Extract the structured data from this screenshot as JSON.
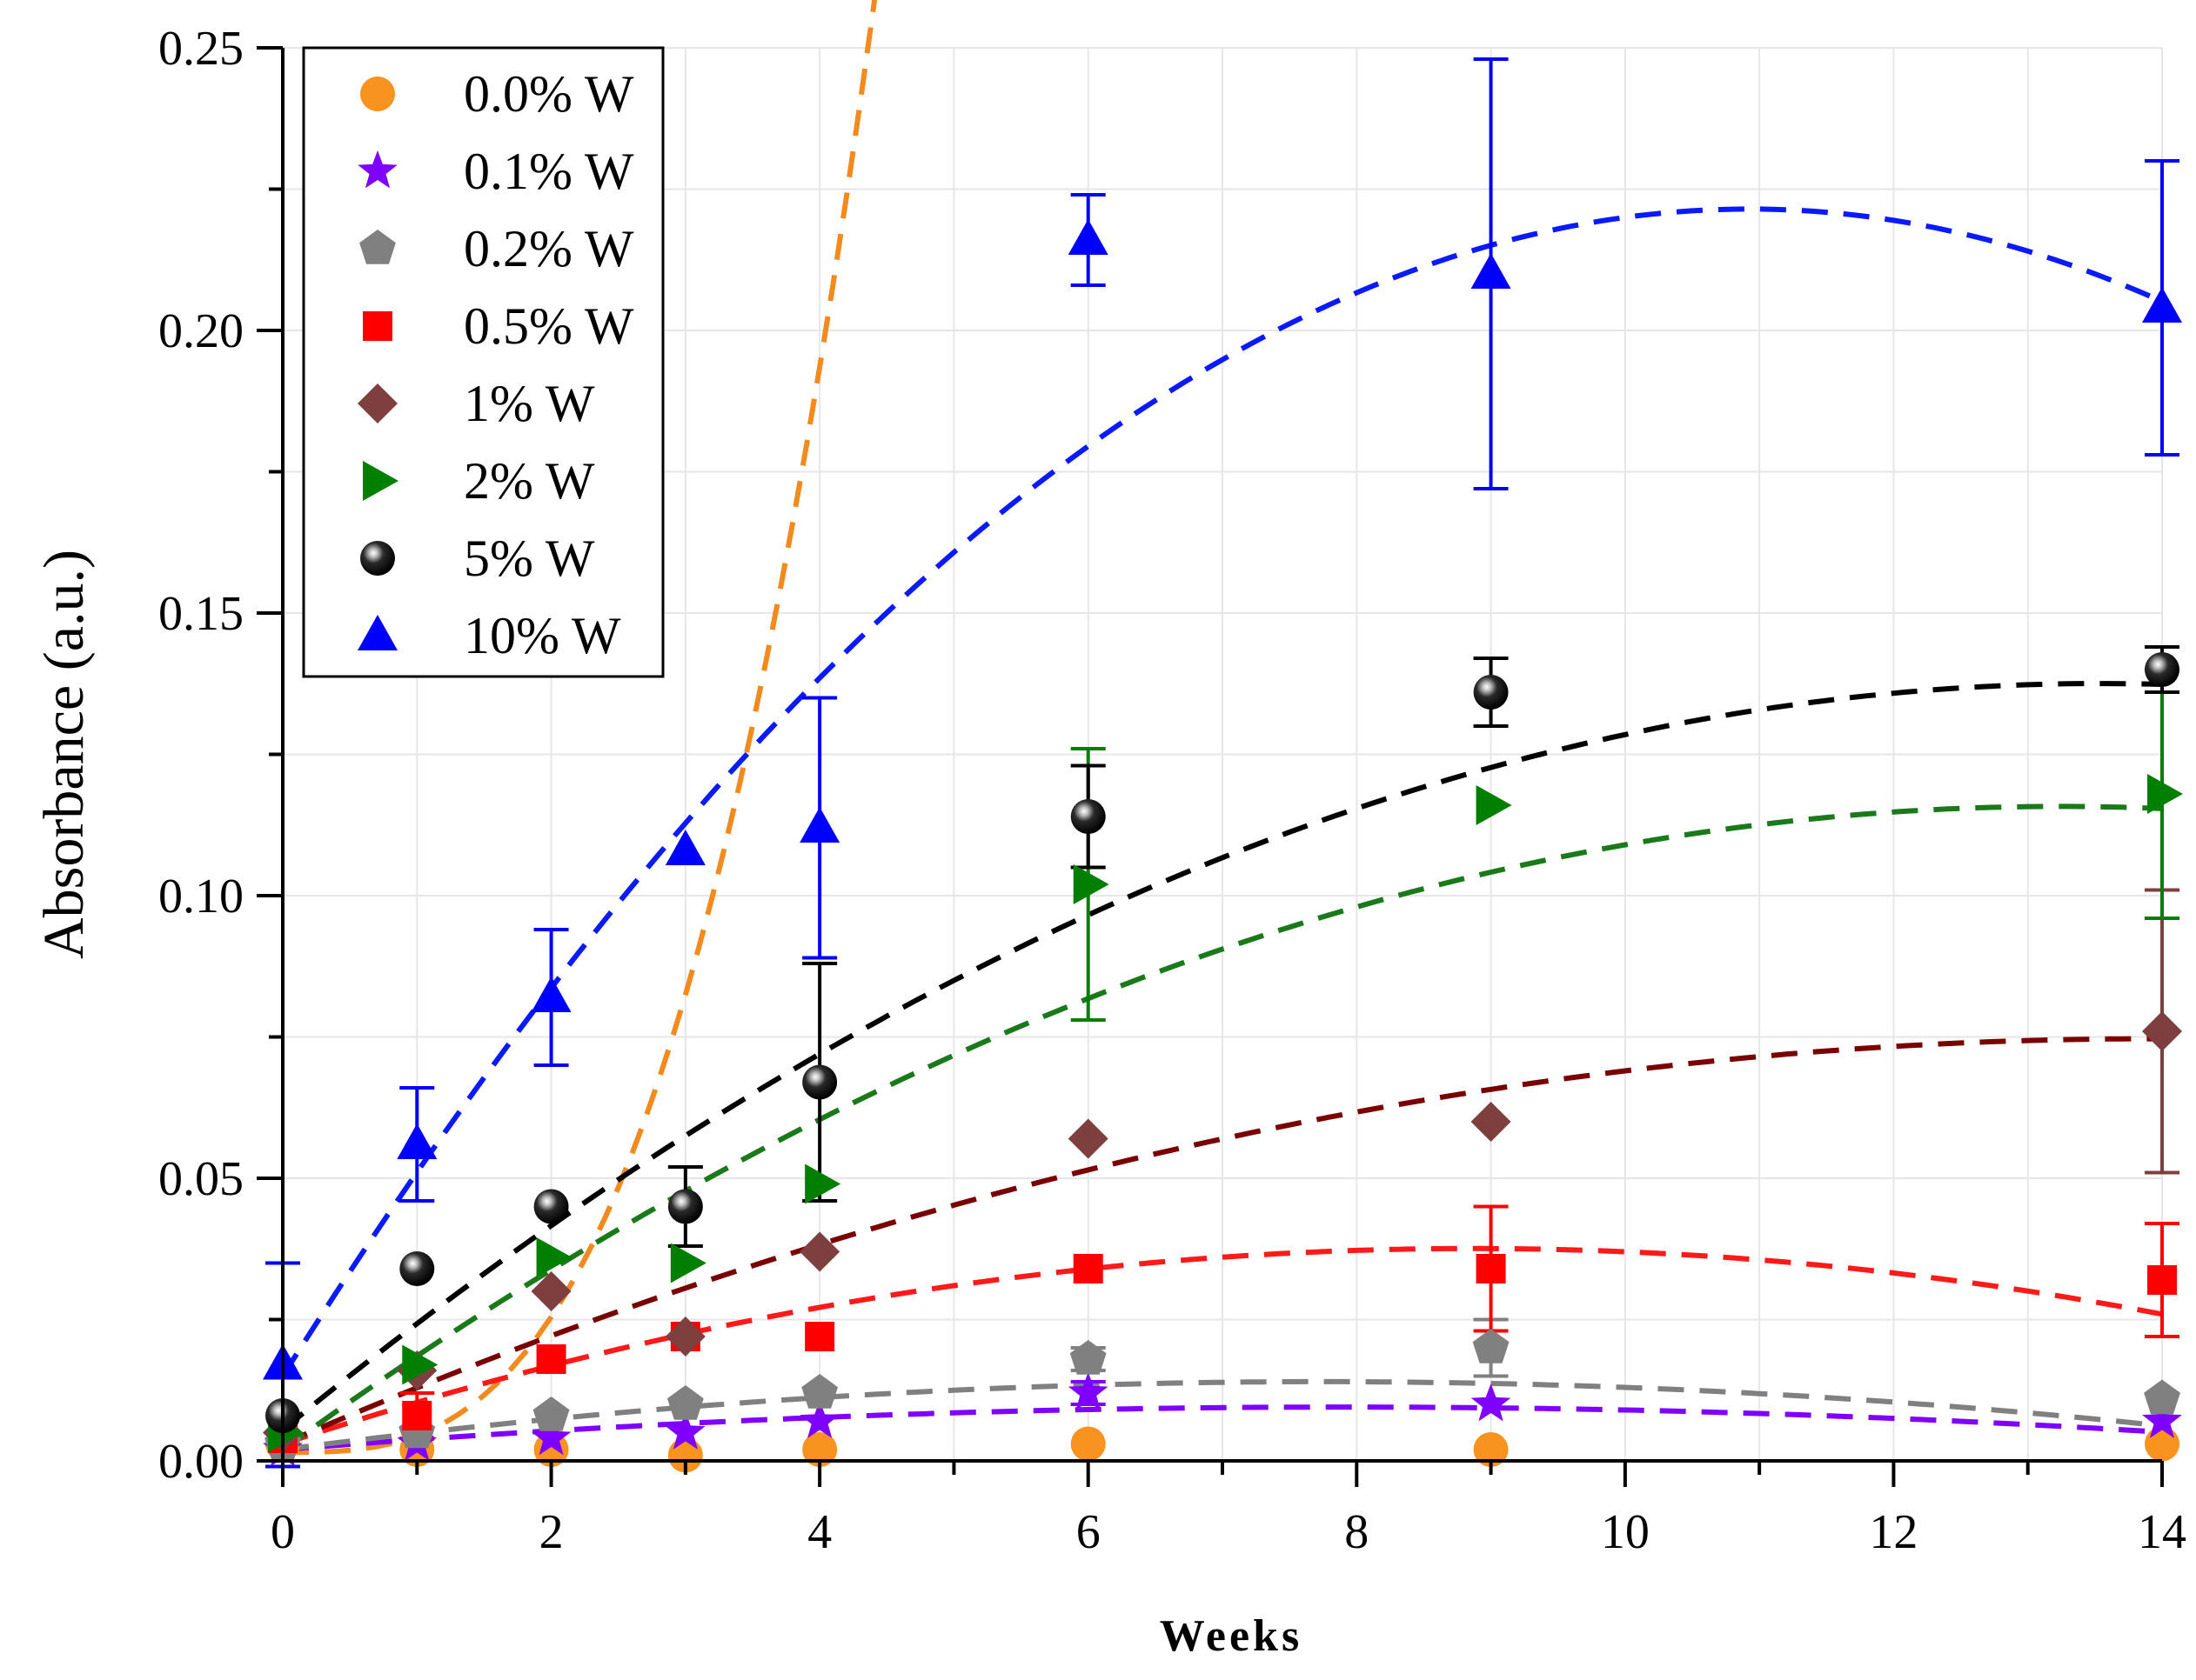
{
  "chart_data": {
    "type": "scatter",
    "title": "",
    "xlabel": "Weeks",
    "ylabel": "Absorbance (a.u.)",
    "xlim": [
      0,
      14
    ],
    "ylim": [
      0,
      0.25
    ],
    "xticks": [
      0,
      2,
      4,
      6,
      8,
      10,
      12,
      14
    ],
    "xtick_labels": [
      "0",
      "2",
      "4",
      "6",
      "8",
      "10",
      "12",
      "14"
    ],
    "yticks": [
      0,
      0.05,
      0.1,
      0.15,
      0.2,
      0.25
    ],
    "ytick_labels": [
      "0.00",
      "0.05",
      "0.10",
      "0.15",
      "0.20",
      "0.25"
    ],
    "grid": true,
    "legend_position": "top-left",
    "fit_lines": "dashed polynomial fits, one per series",
    "series": [
      {
        "name": "0.0% W",
        "color": "#f7931e",
        "fit_color": "#f28a1e",
        "marker": "circle",
        "x": [
          0,
          1,
          2,
          3,
          4,
          6,
          9,
          14
        ],
        "y": [
          0.003,
          0.002,
          0.002,
          0.001,
          0.002,
          0.003,
          0.002,
          0.003
        ],
        "err": [
          0,
          0,
          0,
          0,
          0,
          0,
          0,
          0
        ],
        "fit": [
          0.0015,
          0.0,
          0.0,
          0.003
        ]
      },
      {
        "name": "0.1% W",
        "color": "#8000ff",
        "fit_color": "#8000ff",
        "marker": "star",
        "x": [
          0,
          1,
          2,
          3,
          4,
          6,
          9,
          14
        ],
        "y": [
          0.002,
          0.003,
          0.004,
          0.005,
          0.007,
          0.012,
          0.01,
          0.007
        ],
        "err": [
          0,
          0,
          0,
          0,
          0,
          0.002,
          0,
          0
        ],
        "fit": [
          0.002,
          0.0019,
          -0.00012,
          0.0
        ]
      },
      {
        "name": "0.2% W",
        "color": "#808080",
        "fit_color": "#808080",
        "marker": "pentagon",
        "x": [
          0,
          1,
          2,
          3,
          4,
          6,
          9,
          14
        ],
        "y": [
          0.003,
          0.005,
          0.008,
          0.01,
          0.012,
          0.018,
          0.02,
          0.011
        ],
        "err": [
          0,
          0,
          0,
          0,
          0,
          0.002,
          0.005,
          0
        ],
        "fit": [
          0.002,
          0.0031,
          -0.0002,
          0.0
        ]
      },
      {
        "name": "0.5% W",
        "color": "#ff0000",
        "fit_color": "#ff1a1a",
        "marker": "square",
        "x": [
          0,
          1,
          2,
          3,
          4,
          6,
          9,
          14
        ],
        "y": [
          0.004,
          0.008,
          0.018,
          0.022,
          0.022,
          0.034,
          0.034,
          0.032
        ],
        "err": [
          0,
          0.004,
          0,
          0,
          0,
          0,
          0.011,
          0.01
        ],
        "fit": [
          0.003,
          0.0078,
          -0.00044,
          0.0
        ]
      },
      {
        "name": "1% W",
        "color": "#7f3f3f",
        "fit_color": "#7a0000",
        "marker": "diamond",
        "x": [
          0,
          1,
          2,
          3,
          4,
          6,
          9,
          14
        ],
        "y": [
          0.005,
          0.016,
          0.03,
          0.022,
          0.037,
          0.057,
          0.06,
          0.076
        ],
        "err": [
          0,
          0,
          0,
          0,
          0,
          0,
          0,
          0.025
        ],
        "fit": [
          0.003,
          0.0103,
          -0.00037,
          0.0
        ]
      },
      {
        "name": "2% W",
        "color": "#007f00",
        "fit_color": "#1a7a1a",
        "marker": "triangle-right",
        "x": [
          0,
          1,
          2,
          3,
          4,
          6,
          9,
          14
        ],
        "y": [
          0.005,
          0.017,
          0.036,
          0.035,
          0.049,
          0.102,
          0.116,
          0.118
        ],
        "err": [
          0,
          0,
          0,
          0,
          0,
          0.024,
          0,
          0.022
        ],
        "fit": [
          0.002,
          0.0172,
          -0.00065,
          0.0
        ]
      },
      {
        "name": "5% W",
        "color": "#000000",
        "fit_color": "#000000",
        "marker": "sphere",
        "x": [
          0,
          1,
          2,
          3,
          4,
          6,
          9,
          14
        ],
        "y": [
          0.008,
          0.034,
          0.045,
          0.045,
          0.067,
          0.114,
          0.136,
          0.14
        ],
        "err": [
          0,
          0,
          0,
          0.007,
          0.021,
          0.009,
          0.006,
          0.004
        ],
        "fit": [
          0.0055,
          0.0195,
          -0.00072,
          0.0
        ]
      },
      {
        "name": "10% W",
        "color": "#0000ff",
        "fit_color": "#0a1aff",
        "marker": "triangle-up",
        "x": [
          0,
          1,
          2,
          3,
          4,
          6,
          9,
          14
        ],
        "y": [
          0.017,
          0.056,
          0.082,
          0.108,
          0.112,
          0.216,
          0.21,
          0.204
        ],
        "err": [
          0.018,
          0.01,
          0.012,
          0,
          0.023,
          0.008,
          0.038,
          0.026
        ],
        "fit": [
          0.015,
          0.0378,
          -0.00173,
          0.0
        ]
      }
    ]
  }
}
